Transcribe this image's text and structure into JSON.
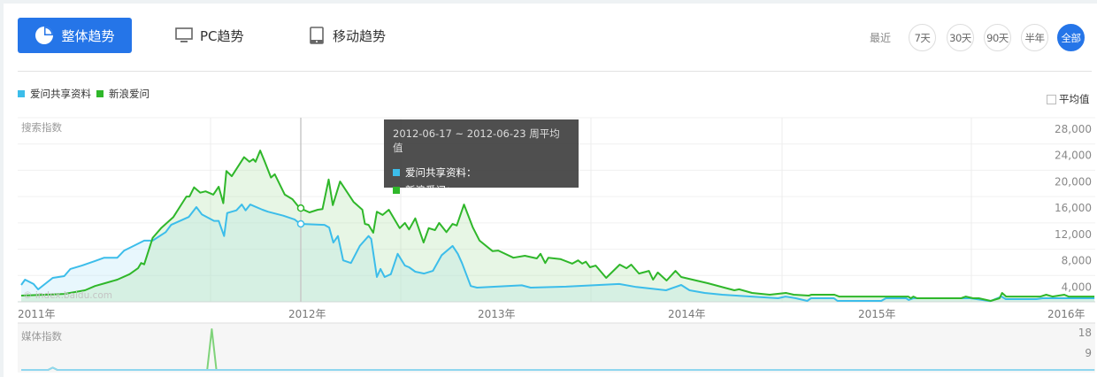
{
  "tabs": [
    {
      "label": "整体趋势",
      "icon": "pie-chart-icon",
      "active": true
    },
    {
      "label": "PC趋势",
      "icon": "monitor-icon"
    },
    {
      "label": "移动趋势",
      "icon": "tablet-icon"
    }
  ],
  "range": {
    "label": "最近",
    "options": [
      "7天",
      "30天",
      "90天",
      "半年",
      "全部"
    ],
    "active": "全部"
  },
  "legend": [
    {
      "name": "爱问共享资料",
      "color": "#3cbdea"
    },
    {
      "name": "新浪爱问",
      "color": "#2fb72a"
    }
  ],
  "avg_label": "平均值",
  "watermark": "© index.baidu.com",
  "tooltip": {
    "title": "2012-06-17 ~ 2012-06-23 周平均值",
    "rows": [
      "爱问共享资料：",
      "新浪爱问："
    ]
  },
  "colors": {
    "accent": "#2575e8",
    "blue": "#3cbdea",
    "green": "#2fb72a"
  },
  "chart_data": [
    {
      "type": "area",
      "title": "搜索指数",
      "ylim": [
        0,
        28000
      ],
      "yticks": [
        "4,000",
        "8,000",
        "12,000",
        "16,000",
        "20,000",
        "24,000",
        "28,000"
      ],
      "yticks_values": [
        4000,
        8000,
        12000,
        16000,
        20000,
        24000,
        28000
      ],
      "xticks": [
        {
          "label": "2011年",
          "date": "2011-01-01"
        },
        {
          "label": "2012年",
          "date": "2012-01-01"
        },
        {
          "label": "2013年",
          "date": "2013-01-01"
        },
        {
          "label": "2014年",
          "date": "2014-01-01"
        },
        {
          "label": "2015年",
          "date": "2015-01-01"
        },
        {
          "label": "2016年",
          "date": "2016-01-01"
        }
      ],
      "grid": true,
      "cursor_date": "2012-06-20",
      "series": [
        {
          "name": "爱问共享资料",
          "color": "#3cbdea",
          "points": [
            [
              "2011-01-01",
              2560
            ],
            [
              "2011-01-06",
              3370
            ],
            [
              "2011-01-17",
              2700
            ],
            [
              "2011-01-23",
              1890
            ],
            [
              "2011-02-11",
              3640
            ],
            [
              "2011-02-26",
              3900
            ],
            [
              "2011-03-06",
              5000
            ],
            [
              "2011-03-21",
              5500
            ],
            [
              "2011-04-07",
              6200
            ],
            [
              "2011-04-19",
              6700
            ],
            [
              "2011-05-06",
              6700
            ],
            [
              "2011-05-15",
              7800
            ],
            [
              "2011-05-29",
              8600
            ],
            [
              "2011-06-10",
              9300
            ],
            [
              "2011-06-21",
              9300
            ],
            [
              "2011-07-08",
              10600
            ],
            [
              "2011-07-15",
              11700
            ],
            [
              "2011-08-07",
              12900
            ],
            [
              "2011-08-17",
              14400
            ],
            [
              "2011-08-24",
              13300
            ],
            [
              "2011-09-09",
              12300
            ],
            [
              "2011-09-15",
              12300
            ],
            [
              "2011-09-22",
              10000
            ],
            [
              "2011-09-26",
              13500
            ],
            [
              "2011-10-08",
              13900
            ],
            [
              "2011-10-15",
              14800
            ],
            [
              "2011-10-20",
              13900
            ],
            [
              "2011-10-26",
              14800
            ],
            [
              "2011-11-11",
              14000
            ],
            [
              "2011-11-18",
              13700
            ],
            [
              "2011-12-08",
              13100
            ],
            [
              "2011-12-23",
              12500
            ],
            [
              "2011-12-30",
              11850
            ],
            [
              "2012-02-14",
              11700
            ],
            [
              "2012-02-23",
              11300
            ],
            [
              "2012-03-02",
              9000
            ],
            [
              "2012-03-11",
              10000
            ],
            [
              "2012-03-21",
              6300
            ],
            [
              "2012-04-05",
              5900
            ],
            [
              "2012-04-22",
              8500
            ],
            [
              "2012-05-09",
              10000
            ],
            [
              "2012-05-14",
              9560
            ],
            [
              "2012-05-25",
              3770
            ],
            [
              "2012-06-01",
              5000
            ],
            [
              "2012-06-09",
              3770
            ],
            [
              "2012-06-21",
              4200
            ],
            [
              "2012-07-04",
              7300
            ],
            [
              "2012-07-18",
              5500
            ],
            [
              "2012-07-26",
              5250
            ],
            [
              "2012-08-07",
              4580
            ],
            [
              "2012-08-24",
              4300
            ],
            [
              "2012-09-10",
              4700
            ],
            [
              "2012-09-27",
              7100
            ],
            [
              "2012-10-18",
              8500
            ],
            [
              "2012-10-28",
              7300
            ],
            [
              "2012-11-05",
              5900
            ],
            [
              "2012-11-22",
              2400
            ],
            [
              "2012-12-04",
              2150
            ],
            [
              "2013-03-01",
              2500
            ],
            [
              "2013-03-18",
              2150
            ],
            [
              "2013-05-25",
              2300
            ],
            [
              "2013-09-04",
              2700
            ],
            [
              "2013-10-07",
              2250
            ],
            [
              "2013-12-03",
              1750
            ],
            [
              "2014-01-01",
              2560
            ],
            [
              "2014-01-17",
              1750
            ],
            [
              "2014-02-15",
              1350
            ],
            [
              "2014-03-21",
              1080
            ],
            [
              "2014-05-16",
              800
            ],
            [
              "2014-07-06",
              540
            ],
            [
              "2014-07-20",
              800
            ],
            [
              "2014-08-09",
              540
            ],
            [
              "2014-08-31",
              130
            ],
            [
              "2014-09-07",
              540
            ],
            [
              "2014-10-21",
              540
            ],
            [
              "2014-10-28",
              130
            ],
            [
              "2015-01-20",
              130
            ],
            [
              "2015-01-29",
              540
            ],
            [
              "2015-03-09",
              540
            ],
            [
              "2015-03-14",
              270
            ],
            [
              "2015-03-23",
              540
            ],
            [
              "2015-07-11",
              540
            ],
            [
              "2015-08-18",
              100
            ],
            [
              "2015-09-09",
              800
            ],
            [
              "2015-09-17",
              400
            ],
            [
              "2015-11-15",
              400
            ],
            [
              "2015-11-27",
              540
            ],
            [
              "2016-03-06",
              540
            ]
          ]
        },
        {
          "name": "新浪爱问",
          "color": "#2fb72a",
          "points": [
            [
              "2011-01-01",
              940
            ],
            [
              "2011-02-02",
              1080
            ],
            [
              "2011-02-26",
              1200
            ],
            [
              "2011-03-25",
              1750
            ],
            [
              "2011-04-07",
              2400
            ],
            [
              "2011-04-20",
              2830
            ],
            [
              "2011-05-06",
              3370
            ],
            [
              "2011-05-22",
              4200
            ],
            [
              "2011-06-02",
              5100
            ],
            [
              "2011-06-06",
              5900
            ],
            [
              "2011-06-10",
              5700
            ],
            [
              "2011-06-21",
              9700
            ],
            [
              "2011-07-02",
              11200
            ],
            [
              "2011-07-18",
              12900
            ],
            [
              "2011-08-04",
              16000
            ],
            [
              "2011-08-08",
              16000
            ],
            [
              "2011-08-14",
              17400
            ],
            [
              "2011-08-22",
              16600
            ],
            [
              "2011-08-29",
              16800
            ],
            [
              "2011-09-08",
              16300
            ],
            [
              "2011-09-15",
              17500
            ],
            [
              "2011-09-21",
              15000
            ],
            [
              "2011-09-25",
              19900
            ],
            [
              "2011-10-02",
              19100
            ],
            [
              "2011-10-18",
              22000
            ],
            [
              "2011-10-25",
              21300
            ],
            [
              "2011-10-30",
              21700
            ],
            [
              "2011-11-02",
              21300
            ],
            [
              "2011-11-08",
              23000
            ],
            [
              "2011-11-14",
              21300
            ],
            [
              "2011-11-22",
              18900
            ],
            [
              "2011-11-27",
              19400
            ],
            [
              "2011-12-10",
              16300
            ],
            [
              "2011-12-20",
              15600
            ],
            [
              "2011-12-29",
              14300
            ],
            [
              "2012-01-16",
              13600
            ],
            [
              "2012-02-01",
              14000
            ],
            [
              "2012-02-10",
              14100
            ],
            [
              "2012-02-22",
              18600
            ],
            [
              "2012-03-01",
              14700
            ],
            [
              "2012-03-15",
              18300
            ],
            [
              "2012-04-10",
              15200
            ],
            [
              "2012-04-27",
              14000
            ],
            [
              "2012-05-02",
              11850
            ],
            [
              "2012-05-09",
              11700
            ],
            [
              "2012-05-18",
              10500
            ],
            [
              "2012-05-25",
              13700
            ],
            [
              "2012-06-05",
              13200
            ],
            [
              "2012-06-17",
              14000
            ],
            [
              "2012-07-08",
              11200
            ],
            [
              "2012-07-18",
              12000
            ],
            [
              "2012-07-26",
              11000
            ],
            [
              "2012-08-07",
              12700
            ],
            [
              "2012-08-23",
              9000
            ],
            [
              "2012-09-02",
              11200
            ],
            [
              "2012-09-14",
              10900
            ],
            [
              "2012-09-22",
              12000
            ],
            [
              "2012-10-06",
              10600
            ],
            [
              "2012-10-18",
              11850
            ],
            [
              "2012-10-26",
              11600
            ],
            [
              "2012-11-09",
              14800
            ],
            [
              "2012-11-26",
              11300
            ],
            [
              "2012-12-09",
              9300
            ],
            [
              "2013-01-04",
              7700
            ],
            [
              "2013-01-15",
              7800
            ],
            [
              "2013-02-13",
              6700
            ],
            [
              "2013-03-07",
              7000
            ],
            [
              "2013-03-30",
              6600
            ],
            [
              "2013-04-06",
              7300
            ],
            [
              "2013-04-15",
              5900
            ],
            [
              "2013-04-21",
              6700
            ],
            [
              "2013-05-14",
              6500
            ],
            [
              "2013-06-06",
              5800
            ],
            [
              "2013-06-17",
              6300
            ],
            [
              "2013-06-25",
              5800
            ],
            [
              "2013-07-02",
              6100
            ],
            [
              "2013-07-10",
              5250
            ],
            [
              "2013-07-21",
              5500
            ],
            [
              "2013-08-10",
              3640
            ],
            [
              "2013-09-05",
              5660
            ],
            [
              "2013-09-18",
              5100
            ],
            [
              "2013-09-27",
              5660
            ],
            [
              "2013-10-12",
              4300
            ],
            [
              "2013-10-31",
              4700
            ],
            [
              "2013-11-08",
              3370
            ],
            [
              "2013-11-17",
              4450
            ],
            [
              "2013-12-04",
              3230
            ],
            [
              "2013-12-21",
              4700
            ],
            [
              "2014-01-01",
              3770
            ],
            [
              "2014-01-30",
              3230
            ],
            [
              "2014-02-21",
              2830
            ],
            [
              "2014-03-27",
              2100
            ],
            [
              "2014-04-13",
              1750
            ],
            [
              "2014-04-22",
              1900
            ],
            [
              "2014-05-17",
              1350
            ],
            [
              "2014-06-20",
              1080
            ],
            [
              "2014-07-21",
              1350
            ],
            [
              "2014-08-05",
              1080
            ],
            [
              "2014-09-03",
              940
            ],
            [
              "2014-09-08",
              1080
            ],
            [
              "2014-10-22",
              1080
            ],
            [
              "2014-10-31",
              800
            ],
            [
              "2015-03-13",
              800
            ],
            [
              "2015-03-18",
              540
            ],
            [
              "2015-03-23",
              800
            ],
            [
              "2015-03-30",
              540
            ],
            [
              "2015-06-23",
              540
            ],
            [
              "2015-07-02",
              800
            ],
            [
              "2015-07-16",
              540
            ],
            [
              "2015-07-27",
              540
            ],
            [
              "2015-08-19",
              130
            ],
            [
              "2015-09-05",
              540
            ],
            [
              "2015-09-10",
              1350
            ],
            [
              "2015-09-18",
              800
            ],
            [
              "2015-11-23",
              800
            ],
            [
              "2015-12-04",
              1080
            ],
            [
              "2015-12-16",
              800
            ],
            [
              "2016-01-08",
              1080
            ],
            [
              "2016-01-16",
              800
            ],
            [
              "2016-03-06",
              800
            ]
          ]
        }
      ]
    },
    {
      "type": "line",
      "title": "媒体指数",
      "ylim": [
        0,
        18
      ],
      "yticks": [
        "9",
        "18"
      ],
      "yticks_values": [
        9,
        18
      ],
      "series": [
        {
          "name": "爱问共享资料",
          "color": "#3cbdea",
          "points": [
            [
              "2011-01-01",
              0
            ],
            [
              "2011-02-05",
              0
            ],
            [
              "2011-02-11",
              1
            ],
            [
              "2011-02-17",
              0
            ],
            [
              "2016-03-06",
              0
            ]
          ]
        },
        {
          "name": "新浪爱问",
          "color": "#2fb72a",
          "points": [
            [
              "2011-01-01",
              0
            ],
            [
              "2011-02-05",
              0
            ],
            [
              "2011-02-11",
              1
            ],
            [
              "2011-02-17",
              0
            ],
            [
              "2011-08-31",
              0
            ],
            [
              "2011-09-06",
              18
            ],
            [
              "2011-09-12",
              0
            ],
            [
              "2016-03-06",
              0
            ]
          ]
        }
      ]
    }
  ]
}
